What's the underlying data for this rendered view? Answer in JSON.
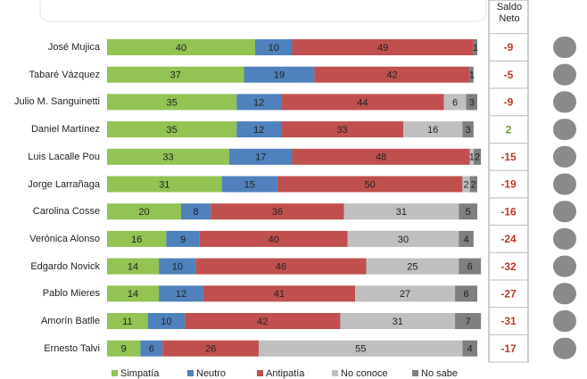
{
  "chart_data": {
    "type": "bar",
    "orientation": "horizontal",
    "stacked": true,
    "categories": [
      "José Mujica",
      "Tabaré Vázquez",
      "Julio M. Sanguinetti",
      "Daniel Martínez",
      "Luis Lacalle Pou",
      "Jorge Larrañaga",
      "Carolina Cosse",
      "Verónica Alonso",
      "Edgardo Novick",
      "Pablo Mieres",
      "Amorín Batlle",
      "Ernesto Talvi"
    ],
    "series": [
      {
        "name": "Simpatía",
        "color": "#92c353",
        "values": [
          40,
          37,
          35,
          35,
          33,
          31,
          20,
          16,
          14,
          14,
          11,
          9
        ]
      },
      {
        "name": "Neutro",
        "color": "#4f81bd",
        "values": [
          10,
          19,
          12,
          12,
          17,
          15,
          8,
          9,
          10,
          12,
          10,
          6
        ]
      },
      {
        "name": "Antipatía",
        "color": "#c0504d",
        "values": [
          49,
          42,
          44,
          33,
          48,
          50,
          36,
          40,
          46,
          41,
          42,
          26
        ]
      },
      {
        "name": "No conoce",
        "color": "#bfbfbf",
        "values": [
          null,
          null,
          6,
          16,
          1,
          2,
          31,
          30,
          25,
          27,
          31,
          55
        ]
      },
      {
        "name": "No sabe",
        "color": "#7f7f7f",
        "values": [
          1,
          1,
          3,
          3,
          2,
          2,
          5,
          4,
          6,
          6,
          7,
          4
        ]
      }
    ],
    "net": {
      "title": "Saldo Neto",
      "values": [
        -9,
        -5,
        -9,
        2,
        -15,
        -19,
        -16,
        -24,
        -32,
        -27,
        -31,
        -17
      ],
      "positive_color": "#70a030",
      "negative_color": "#c0392b"
    },
    "legend": "bottom"
  }
}
